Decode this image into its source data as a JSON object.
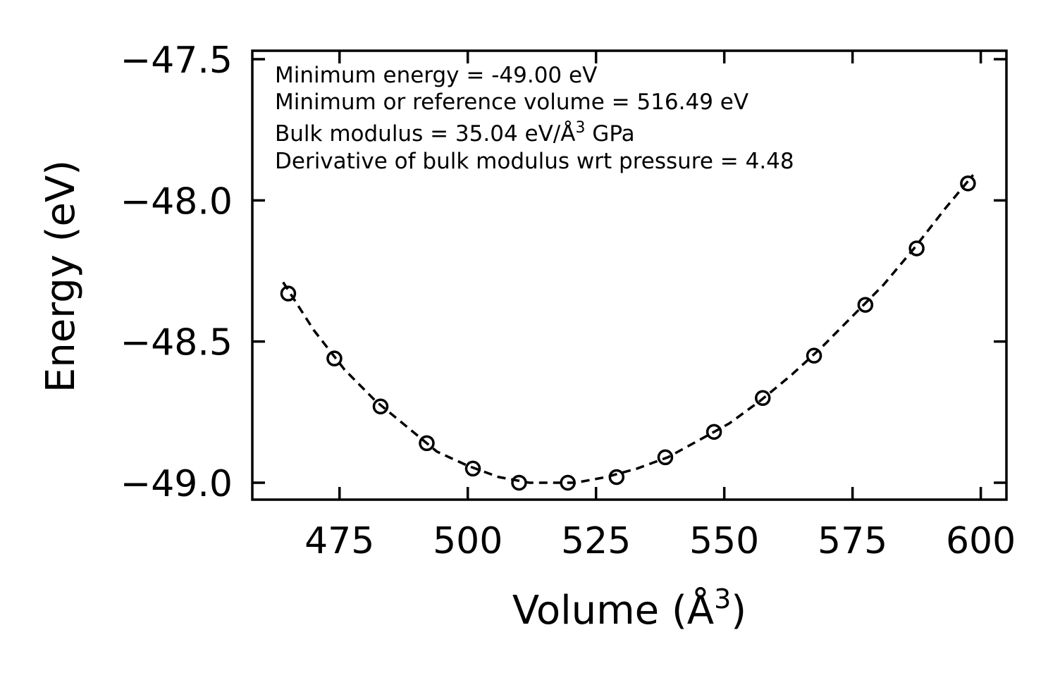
{
  "chart_data": {
    "type": "scatter",
    "title": "",
    "xlabel": "Volume (Å",
    "xlabel_sup": "3",
    "xlabel_close": ")",
    "ylabel": "Energy (eV)",
    "xlim": [
      458,
      605
    ],
    "ylim": [
      -49.06,
      -47.47
    ],
    "xticks": [
      475,
      500,
      525,
      550,
      575,
      600
    ],
    "xtick_labels": [
      "475",
      "500",
      "525",
      "550",
      "575",
      "600"
    ],
    "yticks": [
      -49.0,
      -48.5,
      -48.0,
      -47.5
    ],
    "ytick_labels": [
      "−49.0",
      "−48.5",
      "−48.0",
      "−47.5"
    ],
    "series": [
      {
        "name": "data",
        "marker": "open-circle",
        "x": [
          465.0,
          474.0,
          483.0,
          492.0,
          501.0,
          510.0,
          519.5,
          529.0,
          538.5,
          548.0,
          557.5,
          567.5,
          577.5,
          587.5,
          597.5
        ],
        "y": [
          -48.33,
          -48.56,
          -48.73,
          -48.86,
          -48.95,
          -49.0,
          -49.0,
          -48.98,
          -48.91,
          -48.82,
          -48.7,
          -48.55,
          -48.37,
          -48.17,
          -47.94
        ]
      },
      {
        "name": "fit",
        "style": "dashed-line",
        "x": [
          464.0,
          470.0,
          476.0,
          482.0,
          488.0,
          494.0,
          500.0,
          506.0,
          512.0,
          516.5,
          521.0,
          527.0,
          533.0,
          539.0,
          545.0,
          551.0,
          557.0,
          563.0,
          569.0,
          575.0,
          581.0,
          587.0,
          593.0,
          598.5
        ],
        "y": [
          -48.29,
          -48.46,
          -48.6,
          -48.71,
          -48.8,
          -48.89,
          -48.94,
          -48.98,
          -49.0,
          -49.0,
          -49.0,
          -48.98,
          -48.95,
          -48.91,
          -48.85,
          -48.79,
          -48.71,
          -48.62,
          -48.52,
          -48.41,
          -48.3,
          -48.17,
          -48.03,
          -47.91
        ]
      }
    ],
    "annotations": [
      "Minimum energy = -49.00 eV",
      "Minimum or reference volume = 516.49 eV",
      "Bulk modulus = 35.04 eV/Å",
      "Derivative of bulk modulus wrt pressure = 4.48"
    ],
    "annotation_sup": "3",
    "annotation_suffix": " GPa",
    "legend": "none",
    "grid": false
  }
}
